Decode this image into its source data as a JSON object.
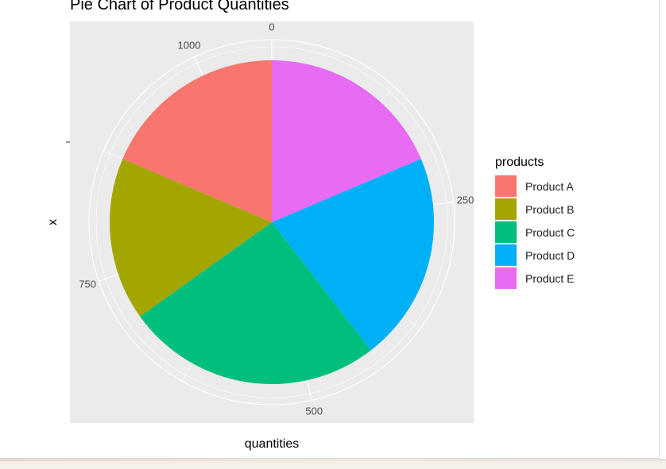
{
  "chart_data": {
    "type": "pie",
    "title": "Pie Chart of Product Quantities",
    "xlabel": "quantities",
    "ylabel": "x",
    "legend_title": "products",
    "legend_position": "right",
    "categories": [
      "Product A",
      "Product B",
      "Product C",
      "Product D",
      "Product E"
    ],
    "values": [
      200,
      175,
      275,
      225,
      200
    ],
    "colors": [
      "#F8766D",
      "#A3A500",
      "#00BF7D",
      "#00B0F6",
      "#E76BF3"
    ],
    "radial_ticks": [
      0,
      250,
      500,
      750,
      1000
    ],
    "total": 1075,
    "panel_background": "#EBEBEB",
    "grid_color": "#FFFFFF",
    "grid": true
  }
}
